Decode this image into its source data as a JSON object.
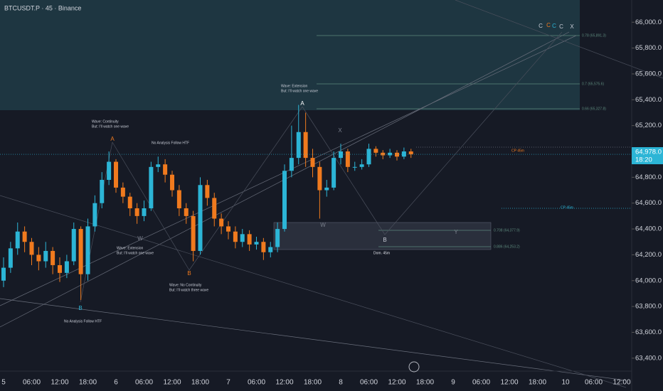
{
  "chart_data": {
    "type": "candlestick",
    "title": "BTCUSDT.P · 45 · Binance",
    "up_color": "#2cb5d6",
    "down_color": "#f07a1e",
    "categories": [
      "5",
      null,
      null,
      null,
      "06:00",
      null,
      null,
      null,
      "12:00",
      null,
      null,
      null,
      "18:00",
      null,
      null,
      null,
      "6",
      null,
      null,
      null,
      "06:00",
      null,
      null,
      null,
      "12:00",
      null,
      null,
      null,
      "18:00",
      null,
      null,
      null,
      "7",
      null,
      null,
      null,
      "06:00",
      null,
      null,
      null,
      "12:00",
      null,
      null,
      null,
      "18:00",
      null,
      null,
      null,
      "8",
      null,
      null,
      null,
      "06:00",
      null,
      null,
      null,
      "12:00",
      null,
      null,
      null,
      "18:00",
      null,
      null,
      null,
      "9",
      null,
      null,
      null,
      "06:00",
      null,
      null,
      null,
      "12:00",
      null,
      null,
      null,
      "18:00",
      null,
      null,
      null,
      "10",
      null,
      null,
      null,
      "06:00",
      null,
      null,
      null,
      "12:00"
    ],
    "open": [
      64000,
      64100,
      64250,
      64380,
      64300,
      64200,
      64150,
      64230,
      64120,
      64060,
      64150,
      64400,
      64050,
      64420,
      64600,
      64780,
      64920,
      64720,
      64650,
      64560,
      64500,
      64560,
      64880,
      64900,
      64820,
      64700,
      64560,
      64500,
      64230,
      64740,
      64640,
      64480,
      64420,
      64380,
      64300,
      64360,
      64280,
      64300,
      64220,
      64260,
      64400,
      64850,
      64950,
      65150,
      64950,
      64880,
      64700,
      64720,
      64950,
      65000,
      64880,
      64880,
      64900,
      65020,
      64990,
      64970,
      64990,
      64960,
      65000,
      null,
      null,
      null,
      null,
      null,
      null,
      null,
      null,
      null,
      null,
      null,
      null,
      null,
      null,
      null,
      null,
      null,
      null,
      null,
      null,
      null,
      null,
      null,
      null,
      null,
      null,
      null,
      null,
      null,
      null
    ],
    "high": [
      64180,
      64300,
      64450,
      64420,
      64330,
      64260,
      64300,
      64260,
      64180,
      64200,
      64450,
      64420,
      64480,
      64660,
      64840,
      65000,
      64940,
      64760,
      64680,
      64600,
      64620,
      64920,
      64960,
      64940,
      64850,
      64740,
      64600,
      64540,
      64800,
      64780,
      64680,
      64520,
      64460,
      64420,
      64400,
      64390,
      64340,
      64330,
      64300,
      64450,
      64900,
      65200,
      65360,
      65300,
      65020,
      64920,
      64780,
      65000,
      65060,
      65020,
      64920,
      64940,
      65060,
      65040,
      65010,
      65020,
      65010,
      65030,
      65020,
      null,
      null,
      null,
      null,
      null,
      null,
      null,
      null,
      null,
      null,
      null,
      null,
      null,
      null,
      null,
      null,
      null,
      null,
      null,
      null,
      null,
      null,
      null,
      null,
      null,
      null,
      null,
      null,
      null,
      null
    ],
    "low": [
      63950,
      64060,
      64200,
      64220,
      64120,
      64080,
      64100,
      64050,
      63990,
      64020,
      64120,
      63850,
      64000,
      64380,
      64560,
      64740,
      64680,
      64600,
      64500,
      64440,
      64460,
      64540,
      64840,
      64760,
      64650,
      64500,
      64440,
      64150,
      64200,
      64580,
      64420,
      64360,
      64320,
      64250,
      64260,
      64230,
      64240,
      64160,
      64180,
      64220,
      64380,
      64800,
      64900,
      64880,
      64800,
      64480,
      64650,
      64700,
      64900,
      64840,
      64850,
      64860,
      64880,
      64960,
      64940,
      64950,
      64930,
      64940,
      64950,
      null,
      null,
      null,
      null,
      null,
      null,
      null,
      null,
      null,
      null,
      null,
      null,
      null,
      null,
      null,
      null,
      null,
      null,
      null,
      null,
      null,
      null,
      null,
      null,
      null,
      null,
      null,
      null,
      null,
      null
    ],
    "close": [
      64100,
      64250,
      64380,
      64300,
      64200,
      64150,
      64230,
      64120,
      64060,
      64150,
      64400,
      64050,
      64420,
      64600,
      64780,
      64920,
      64720,
      64650,
      64560,
      64500,
      64560,
      64880,
      64900,
      64820,
      64700,
      64560,
      64500,
      64230,
      64740,
      64640,
      64480,
      64420,
      64380,
      64300,
      64360,
      64280,
      64300,
      64220,
      64260,
      64400,
      64850,
      64950,
      65150,
      64950,
      64880,
      64700,
      64720,
      64950,
      65000,
      64880,
      64880,
      64900,
      65020,
      64990,
      64970,
      64990,
      64960,
      65000,
      64978,
      null,
      null,
      null,
      null,
      null,
      null,
      null,
      null,
      null,
      null,
      null,
      null,
      null,
      null,
      null,
      null,
      null,
      null,
      null,
      null,
      null,
      null,
      null,
      null,
      null,
      null,
      null,
      null,
      null,
      null
    ],
    "ylim": [
      63300,
      66150
    ],
    "yticks": [
      {
        "value": 63400,
        "label": "63,400.0"
      },
      {
        "value": 63600,
        "label": "63,600.0"
      },
      {
        "value": 63800,
        "label": "63,800.0"
      },
      {
        "value": 64000,
        "label": "64,000.0"
      },
      {
        "value": 64200,
        "label": "64,200.0"
      },
      {
        "value": 64400,
        "label": "64,400.0"
      },
      {
        "value": 64600,
        "label": "64,600.0"
      },
      {
        "value": 64800,
        "label": "64,800.0"
      },
      {
        "value": 65000,
        "label": "65,000.0"
      },
      {
        "value": 65200,
        "label": "65,200.0"
      },
      {
        "value": 65400,
        "label": "65,400.0"
      },
      {
        "value": 65600,
        "label": "65,600.0"
      },
      {
        "value": 65800,
        "label": "65,800.0"
      },
      {
        "value": 66000,
        "label": "66,000.0"
      }
    ],
    "last_price": {
      "value": 64978,
      "label": "64,978.0",
      "countdown": "18:20"
    },
    "annotations": [
      {
        "text": "Wave: Continuity",
        "color": "#c8ccd6"
      },
      {
        "text": "But: I'll watch one wave",
        "color": "#c8ccd6"
      },
      {
        "text": "A",
        "color": "#f07a1e"
      },
      {
        "text": "No Analysis Follow HTF",
        "color": "#c8ccd6"
      },
      {
        "text": "Wave: Extension",
        "color": "#c8ccd6"
      },
      {
        "text": "But: I'll watch one wave",
        "color": "#c8ccd6"
      },
      {
        "text": "A",
        "color": "#ffffff"
      },
      {
        "text": "X",
        "color": "#7a7f8c"
      },
      {
        "text": "W",
        "color": "#7a7f8c"
      },
      {
        "text": "Wave: Extension",
        "color": "#c8ccd6"
      },
      {
        "text": "But: I'll watch one wave",
        "color": "#c8ccd6"
      },
      {
        "text": "B",
        "color": "#f07a1e"
      },
      {
        "text": "Wave:  No Continuity",
        "color": "#c8ccd6"
      },
      {
        "text": "But: I'll watch three wave",
        "color": "#c8ccd6"
      },
      {
        "text": "B",
        "color": "#2cb5d6"
      },
      {
        "text": "No Analysis Follow HTF",
        "color": "#c8ccd6"
      },
      {
        "text": "W",
        "color": "#7a7f8c"
      },
      {
        "text": "B",
        "color": "#c8ccd6"
      },
      {
        "text": "Y",
        "color": "#7a7f8c"
      },
      {
        "text": "Dom. 45m",
        "color": "#e0e3eb"
      },
      {
        "text": "CP 45m",
        "color": "#f07a1e"
      },
      {
        "text": "CP 45m",
        "color": "#2cb5d6"
      },
      {
        "text": "0.78 (65,891.3)",
        "color": "#5d8a7d"
      },
      {
        "text": "0.7 (65,575.6)",
        "color": "#5d8a7d"
      },
      {
        "text": "0.66 (65,327.8)",
        "color": "#5d8a7d"
      },
      {
        "text": "0.708 (64,377.9)",
        "color": "#5d8a7d"
      },
      {
        "text": "0.886 (64,253.2)",
        "color": "#5d8a7d"
      },
      {
        "text": "C",
        "color": "#c8ccd6"
      },
      {
        "text": "C",
        "color": "#f07a1e"
      },
      {
        "text": "C",
        "color": "#2cb5d6"
      },
      {
        "text": "C",
        "color": "#c8ccd6"
      },
      {
        "text": "X",
        "color": "#c8ccd6"
      }
    ]
  }
}
